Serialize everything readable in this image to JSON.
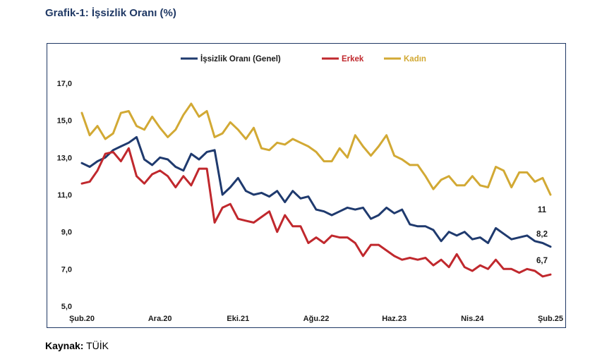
{
  "header": {
    "title": "Grafik-1: İşsizlik Oranı (%)"
  },
  "footer": {
    "source_label": "Kaynak:",
    "source_value": "TÜİK"
  },
  "chart_data": {
    "type": "line",
    "title": "Grafik-1: İşsizlik Oranı (%)",
    "xlabel": "",
    "ylabel": "",
    "ylim": [
      5,
      17
    ],
    "yticks": [
      "5,0",
      "7,0",
      "9,0",
      "11,0",
      "13,0",
      "15,0",
      "17,0"
    ],
    "ytick_values": [
      5,
      7,
      9,
      11,
      13,
      15,
      17
    ],
    "xtick_labels": [
      "Şub.20",
      "Ara.20",
      "Eki.21",
      "Ağu.22",
      "Haz.23",
      "Nis.24",
      "Şub.25"
    ],
    "xtick_indices": [
      0,
      10,
      20,
      30,
      40,
      50,
      60
    ],
    "n_points": 61,
    "legend_position": "top-center",
    "grid": false,
    "series": [
      {
        "name": "İşsizlik Oranı (Genel)",
        "color": "#1f3a6e",
        "values": [
          12.7,
          12.5,
          12.8,
          13.0,
          13.4,
          13.6,
          13.8,
          14.1,
          12.9,
          12.6,
          13.0,
          12.9,
          12.5,
          12.3,
          13.2,
          12.9,
          13.3,
          13.4,
          11.0,
          11.4,
          11.9,
          11.2,
          11.0,
          11.1,
          10.9,
          11.2,
          10.6,
          11.2,
          10.8,
          10.9,
          10.2,
          10.1,
          9.9,
          10.1,
          10.3,
          10.2,
          10.3,
          9.7,
          9.9,
          10.3,
          10.0,
          10.2,
          9.4,
          9.3,
          9.3,
          9.1,
          8.5,
          9.0,
          8.8,
          9.0,
          8.6,
          8.7,
          8.4,
          9.2,
          8.9,
          8.6,
          8.7,
          8.8,
          8.5,
          8.4,
          8.2
        ],
        "end_label": "8,2"
      },
      {
        "name": "Erkek",
        "color": "#c0282d",
        "values": [
          11.6,
          11.7,
          12.3,
          13.2,
          13.3,
          12.8,
          13.5,
          12.0,
          11.6,
          12.1,
          12.3,
          12.0,
          11.4,
          12.0,
          11.5,
          12.4,
          12.4,
          9.5,
          10.3,
          10.5,
          9.7,
          9.6,
          9.5,
          9.8,
          10.1,
          9.0,
          9.9,
          9.3,
          9.3,
          8.4,
          8.7,
          8.4,
          8.8,
          8.7,
          8.7,
          8.4,
          7.7,
          8.3,
          8.3,
          8.0,
          7.7,
          7.5,
          7.6,
          7.5,
          7.6,
          7.2,
          7.5,
          7.1,
          7.8,
          7.1,
          6.9,
          7.2,
          7.0,
          7.5,
          7.0,
          7.0,
          6.8,
          7.0,
          6.9,
          6.6,
          6.7
        ],
        "end_label": "6,7"
      },
      {
        "name": "Kadın",
        "color": "#d2a934",
        "values": [
          15.4,
          14.2,
          14.7,
          14.0,
          14.3,
          15.4,
          15.5,
          14.7,
          14.5,
          15.2,
          14.6,
          14.1,
          14.5,
          15.3,
          15.9,
          15.2,
          15.5,
          14.1,
          14.3,
          14.9,
          14.5,
          14.0,
          14.6,
          13.5,
          13.4,
          13.8,
          13.7,
          14.0,
          13.8,
          13.6,
          13.3,
          12.8,
          12.8,
          13.5,
          13.0,
          14.2,
          13.6,
          13.1,
          13.6,
          14.2,
          13.1,
          12.9,
          12.6,
          12.6,
          12.0,
          11.3,
          11.8,
          12.0,
          11.5,
          11.5,
          12.0,
          11.5,
          11.4,
          12.5,
          12.3,
          11.4,
          12.2,
          12.2,
          11.7,
          11.9,
          11.0
        ],
        "end_label": "11"
      }
    ]
  }
}
